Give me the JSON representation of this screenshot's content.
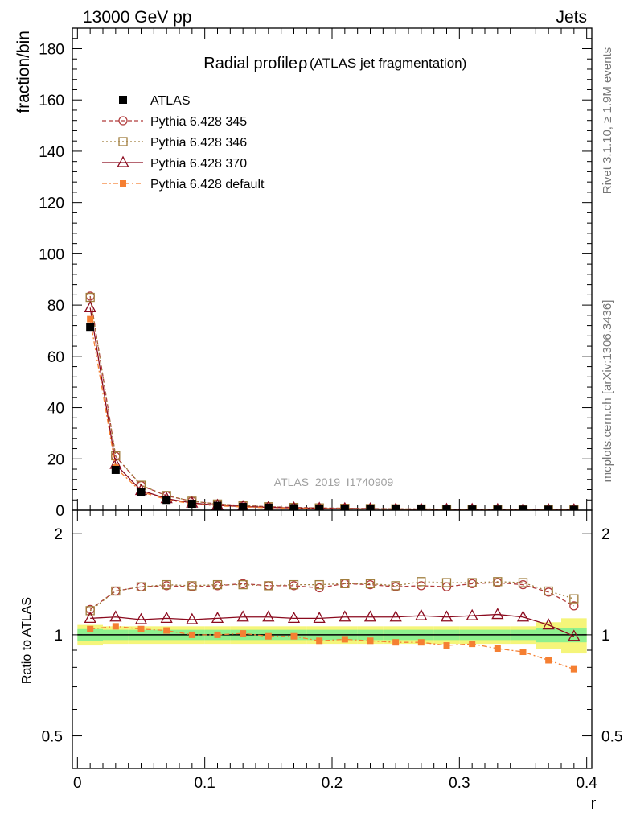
{
  "header": {
    "left": "13000 GeV pp",
    "right": "Jets"
  },
  "side_labels": {
    "rivet": "Rivet 3.1.10, ≥ 1.9M events",
    "mcplots": "mcplots.cern.ch [arXiv:1306.3436]"
  },
  "colors": {
    "atlas": "#000000",
    "py345": "#b03a3a",
    "py346": "#a07d3c",
    "py370": "#8b0a1e",
    "pydefault": "#f57f32",
    "band_green": "#8ef08e",
    "band_yellow": "#f5f57a"
  },
  "chart_data": [
    {
      "type": "line",
      "panel": "main",
      "title": "Radial profile",
      "title_symbol": "ρ",
      "title_suffix": "(ATLAS jet fragmentation)",
      "watermark": "ATLAS_2019_I1740909",
      "xlabel": "r",
      "ylabel": "fraction/bin",
      "xlim": [
        -0.004,
        0.404
      ],
      "ylim": [
        0,
        188
      ],
      "yticks": [
        0,
        20,
        40,
        60,
        80,
        100,
        120,
        140,
        160,
        180
      ],
      "xticks": [
        0,
        0.1,
        0.2,
        0.3,
        0.4
      ],
      "xticklabels": [
        "0",
        "0.1",
        "0.2",
        "0.3",
        "0.4"
      ],
      "x": [
        0.01,
        0.03,
        0.05,
        0.07,
        0.09,
        0.11,
        0.13,
        0.15,
        0.17,
        0.19,
        0.21,
        0.23,
        0.25,
        0.27,
        0.29,
        0.31,
        0.33,
        0.35,
        0.37,
        0.39
      ],
      "series": [
        {
          "name": "ATLAS",
          "key": "atlas",
          "marker": "filled-square",
          "values": [
            71.5,
            15.7,
            6.9,
            4.0,
            2.5,
            1.7,
            1.25,
            0.95,
            0.75,
            0.62,
            0.52,
            0.44,
            0.38,
            0.33,
            0.29,
            0.26,
            0.23,
            0.21,
            0.19,
            0.17
          ]
        },
        {
          "name": "Pythia 6.428 345",
          "key": "py345",
          "marker": "open-circle",
          "dash": "5,3",
          "values": [
            83.5,
            21.0,
            9.6,
            5.6,
            3.5,
            2.4,
            1.8,
            1.35,
            1.06,
            0.86,
            0.74,
            0.62,
            0.54,
            0.47,
            0.41,
            0.37,
            0.33,
            0.3,
            0.26,
            0.21
          ]
        },
        {
          "name": "Pythia 6.428 346",
          "key": "py346",
          "marker": "open-square",
          "dash": "2,3",
          "values": [
            83.0,
            21.2,
            9.7,
            5.7,
            3.5,
            2.4,
            1.78,
            1.34,
            1.06,
            0.88,
            0.74,
            0.63,
            0.54,
            0.48,
            0.42,
            0.37,
            0.33,
            0.3,
            0.26,
            0.22
          ]
        },
        {
          "name": "Pythia 6.428 370",
          "key": "py370",
          "marker": "open-triangle",
          "dash": "",
          "values": [
            79.0,
            17.9,
            7.7,
            4.5,
            2.8,
            1.9,
            1.43,
            1.09,
            0.86,
            0.7,
            0.59,
            0.5,
            0.43,
            0.38,
            0.33,
            0.3,
            0.27,
            0.24,
            0.21,
            0.17
          ]
        },
        {
          "name": "Pythia 6.428 default",
          "key": "pydefault",
          "marker": "filled-small-square",
          "dash": "6,3,2,3",
          "values": [
            74.5,
            16.6,
            7.2,
            4.1,
            2.5,
            1.7,
            1.27,
            0.93,
            0.74,
            0.59,
            0.5,
            0.42,
            0.36,
            0.31,
            0.27,
            0.24,
            0.21,
            0.19,
            0.16,
            0.14
          ]
        }
      ]
    },
    {
      "type": "line",
      "panel": "ratio",
      "ylabel": "Ratio to ATLAS",
      "yscale": "log",
      "ylim": [
        0.4,
        2.35
      ],
      "yticks": [
        0.5,
        1,
        2
      ],
      "yticklabels": [
        "0.5",
        "1",
        "2"
      ],
      "x": [
        0.01,
        0.03,
        0.05,
        0.07,
        0.09,
        0.11,
        0.13,
        0.15,
        0.17,
        0.19,
        0.21,
        0.23,
        0.25,
        0.27,
        0.29,
        0.31,
        0.33,
        0.35,
        0.37,
        0.39
      ],
      "band_green_halfwidth": [
        0.04,
        0.035,
        0.035,
        0.035,
        0.035,
        0.035,
        0.035,
        0.035,
        0.035,
        0.035,
        0.035,
        0.035,
        0.035,
        0.035,
        0.035,
        0.035,
        0.035,
        0.035,
        0.05,
        0.05
      ],
      "band_yellow_halfwidth": [
        0.07,
        0.06,
        0.06,
        0.06,
        0.06,
        0.06,
        0.06,
        0.06,
        0.06,
        0.06,
        0.06,
        0.06,
        0.06,
        0.06,
        0.06,
        0.06,
        0.06,
        0.06,
        0.09,
        0.12
      ],
      "series": [
        {
          "name": "Pythia 6.428 345",
          "key": "py345",
          "values": [
            1.19,
            1.35,
            1.39,
            1.4,
            1.39,
            1.4,
            1.42,
            1.4,
            1.4,
            1.38,
            1.42,
            1.41,
            1.39,
            1.4,
            1.39,
            1.42,
            1.43,
            1.41,
            1.34,
            1.22
          ]
        },
        {
          "name": "Pythia 6.428 346",
          "key": "py346",
          "values": [
            1.18,
            1.35,
            1.39,
            1.41,
            1.4,
            1.41,
            1.41,
            1.4,
            1.41,
            1.41,
            1.42,
            1.42,
            1.4,
            1.44,
            1.43,
            1.43,
            1.44,
            1.43,
            1.35,
            1.28
          ]
        },
        {
          "name": "Pythia 6.428 370",
          "key": "py370",
          "values": [
            1.12,
            1.13,
            1.11,
            1.12,
            1.11,
            1.12,
            1.13,
            1.13,
            1.12,
            1.12,
            1.13,
            1.13,
            1.13,
            1.14,
            1.13,
            1.14,
            1.15,
            1.13,
            1.07,
            0.99
          ]
        },
        {
          "name": "Pythia 6.428 default",
          "key": "pydefault",
          "values": [
            1.04,
            1.06,
            1.04,
            1.03,
            1.0,
            1.0,
            1.01,
            0.99,
            0.99,
            0.96,
            0.97,
            0.96,
            0.95,
            0.95,
            0.93,
            0.94,
            0.91,
            0.89,
            0.84,
            0.79
          ]
        }
      ]
    }
  ]
}
